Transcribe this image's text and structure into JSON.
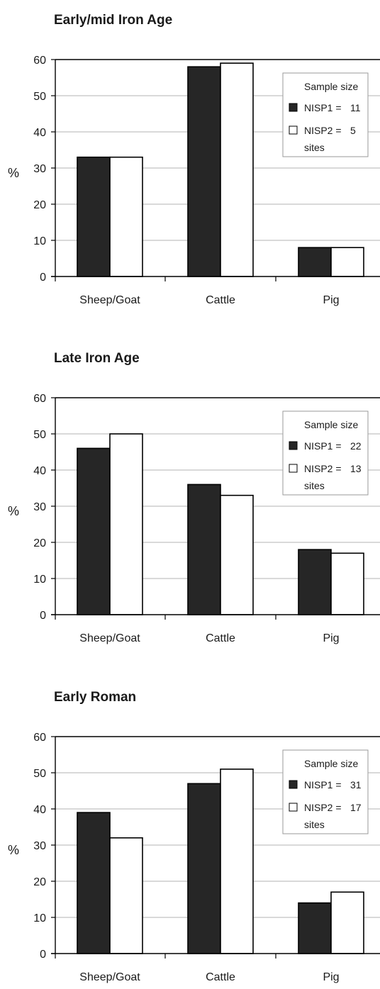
{
  "colors": {
    "nisp1": "#262626",
    "nisp2": "#ffffff",
    "grid": "#b3b3b3",
    "axis": "#000000"
  },
  "chart_data": [
    {
      "type": "bar",
      "title": "Early/mid Iron Age",
      "ylabel": "%",
      "ylim": [
        0,
        60
      ],
      "yticks": [
        "0",
        "10",
        "20",
        "30",
        "40",
        "50",
        "60"
      ],
      "grid": true,
      "legend_position": "top-right",
      "categories": [
        "Sheep/Goat",
        "Cattle",
        "Pig"
      ],
      "series": [
        {
          "name": "NISP1",
          "values": [
            33,
            58,
            8
          ]
        },
        {
          "name": "NISP2",
          "values": [
            33,
            59,
            8
          ]
        }
      ],
      "legend": {
        "heading": "Sample size",
        "entries": [
          {
            "label": "NISP1 =",
            "value": "11"
          },
          {
            "label": "NISP2 =",
            "value": "5"
          }
        ],
        "note": "sites"
      }
    },
    {
      "type": "bar",
      "title": "Late Iron Age",
      "ylabel": "%",
      "ylim": [
        0,
        60
      ],
      "yticks": [
        "0",
        "10",
        "20",
        "30",
        "40",
        "50",
        "60"
      ],
      "grid": true,
      "legend_position": "top-right",
      "categories": [
        "Sheep/Goat",
        "Cattle",
        "Pig"
      ],
      "series": [
        {
          "name": "NISP1",
          "values": [
            46,
            36,
            18
          ]
        },
        {
          "name": "NISP2",
          "values": [
            50,
            33,
            17
          ]
        }
      ],
      "legend": {
        "heading": "Sample size",
        "entries": [
          {
            "label": "NISP1 =",
            "value": "22"
          },
          {
            "label": "NISP2 =",
            "value": "13"
          }
        ],
        "note": "sites"
      }
    },
    {
      "type": "bar",
      "title": "Early Roman",
      "ylabel": "%",
      "ylim": [
        0,
        60
      ],
      "yticks": [
        "0",
        "10",
        "20",
        "30",
        "40",
        "50",
        "60"
      ],
      "grid": true,
      "legend_position": "top-right",
      "categories": [
        "Sheep/Goat",
        "Cattle",
        "Pig"
      ],
      "series": [
        {
          "name": "NISP1",
          "values": [
            39,
            47,
            14
          ]
        },
        {
          "name": "NISP2",
          "values": [
            32,
            51,
            17
          ]
        }
      ],
      "legend": {
        "heading": "Sample size",
        "entries": [
          {
            "label": "NISP1 =",
            "value": "31"
          },
          {
            "label": "NISP2 =",
            "value": "17"
          }
        ],
        "note": "sites"
      }
    }
  ]
}
